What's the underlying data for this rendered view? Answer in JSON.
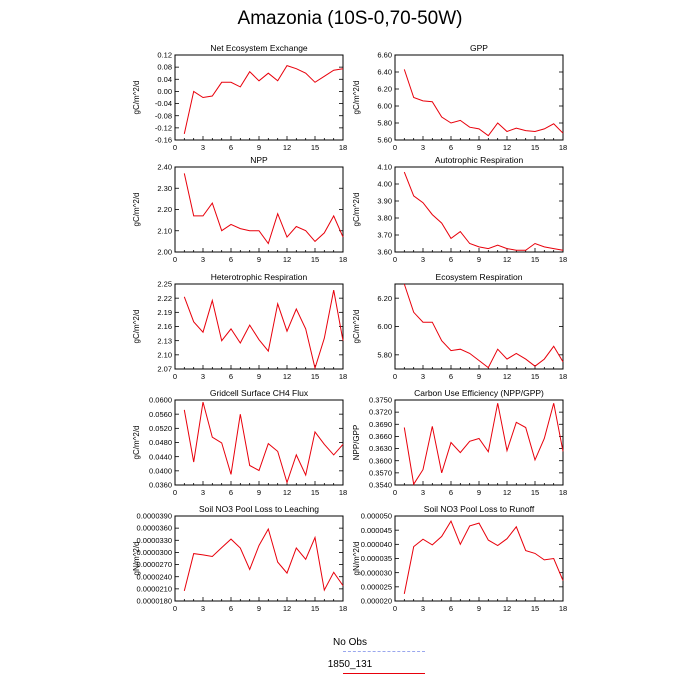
{
  "title": "Amazonia (10S-0,70-50W)",
  "colors": {
    "series": "#e8000b",
    "obs": "#9aa7ee"
  },
  "legend": {
    "obs_label": "No Obs",
    "model_label": "1850_131"
  },
  "chart_data": [
    {
      "type": "line",
      "title": "Net Ecosystem Exchange",
      "ylabel": "gC/m^2/d",
      "xlim": [
        0,
        18
      ],
      "xticks": [
        "0",
        "3",
        "6",
        "9",
        "12",
        "15",
        "18"
      ],
      "ylim": [
        -0.16,
        0.12
      ],
      "yticks": [
        "-0.16",
        "-0.12",
        "-0.08",
        "-0.04",
        "0.00",
        "0.04",
        "0.08",
        "0.12"
      ],
      "x": [
        1,
        2,
        3,
        4,
        5,
        6,
        7,
        8,
        9,
        10,
        11,
        12,
        13,
        14,
        15,
        16,
        17,
        18
      ],
      "y": [
        -0.14,
        0.0,
        -0.02,
        -0.015,
        0.03,
        0.03,
        0.015,
        0.065,
        0.035,
        0.06,
        0.035,
        0.085,
        0.075,
        0.06,
        0.03,
        0.05,
        0.07,
        0.075
      ]
    },
    {
      "type": "line",
      "title": "GPP",
      "ylabel": "gC/m^2/d",
      "xlim": [
        0,
        18
      ],
      "xticks": [
        "0",
        "3",
        "6",
        "9",
        "12",
        "15",
        "18"
      ],
      "ylim": [
        5.6,
        6.6
      ],
      "yticks": [
        "5.60",
        "5.80",
        "6.00",
        "6.20",
        "6.40",
        "6.60"
      ],
      "x": [
        1,
        2,
        3,
        4,
        5,
        6,
        7,
        8,
        9,
        10,
        11,
        12,
        13,
        14,
        15,
        16,
        17,
        18
      ],
      "y": [
        6.43,
        6.1,
        6.06,
        6.05,
        5.87,
        5.8,
        5.83,
        5.75,
        5.73,
        5.65,
        5.8,
        5.7,
        5.74,
        5.71,
        5.7,
        5.73,
        5.79,
        5.68
      ]
    },
    {
      "type": "line",
      "title": "NPP",
      "ylabel": "gC/m^2/d",
      "xlim": [
        0,
        18
      ],
      "xticks": [
        "0",
        "3",
        "6",
        "9",
        "12",
        "15",
        "18"
      ],
      "ylim": [
        2.0,
        2.4
      ],
      "yticks": [
        "2.00",
        "2.10",
        "2.20",
        "2.30",
        "2.40"
      ],
      "x": [
        1,
        2,
        3,
        4,
        5,
        6,
        7,
        8,
        9,
        10,
        11,
        12,
        13,
        14,
        15,
        16,
        17,
        18
      ],
      "y": [
        2.37,
        2.17,
        2.17,
        2.23,
        2.1,
        2.13,
        2.11,
        2.1,
        2.1,
        2.04,
        2.18,
        2.07,
        2.12,
        2.1,
        2.05,
        2.09,
        2.17,
        2.07
      ]
    },
    {
      "type": "line",
      "title": "Autotrophic Respiration",
      "ylabel": "gC/m^2/d",
      "xlim": [
        0,
        18
      ],
      "xticks": [
        "0",
        "3",
        "6",
        "9",
        "12",
        "15",
        "18"
      ],
      "ylim": [
        3.6,
        4.1
      ],
      "yticks": [
        "3.60",
        "3.70",
        "3.80",
        "3.90",
        "4.00",
        "4.10"
      ],
      "x": [
        1,
        2,
        3,
        4,
        5,
        6,
        7,
        8,
        9,
        10,
        11,
        12,
        13,
        14,
        15,
        16,
        17,
        18
      ],
      "y": [
        4.07,
        3.93,
        3.89,
        3.82,
        3.77,
        3.68,
        3.72,
        3.65,
        3.63,
        3.62,
        3.64,
        3.62,
        3.61,
        3.61,
        3.65,
        3.63,
        3.62,
        3.61
      ]
    },
    {
      "type": "line",
      "title": "Heterotrophic Respiration",
      "ylabel": "gC/m^2/d",
      "xlim": [
        0,
        18
      ],
      "xticks": [
        "0",
        "3",
        "6",
        "9",
        "12",
        "15",
        "18"
      ],
      "ylim": [
        2.07,
        2.25
      ],
      "yticks": [
        "2.07",
        "2.10",
        "2.13",
        "2.16",
        "2.19",
        "2.22",
        "2.25"
      ],
      "x": [
        1,
        2,
        3,
        4,
        5,
        6,
        7,
        8,
        9,
        10,
        11,
        12,
        13,
        14,
        15,
        16,
        17,
        18
      ],
      "y": [
        2.223,
        2.17,
        2.148,
        2.215,
        2.13,
        2.155,
        2.125,
        2.163,
        2.132,
        2.108,
        2.208,
        2.15,
        2.197,
        2.155,
        2.072,
        2.135,
        2.237,
        2.13
      ]
    },
    {
      "type": "line",
      "title": "Ecosystem Respiration",
      "ylabel": "gC/m^2/d",
      "xlim": [
        0,
        18
      ],
      "xticks": [
        "0",
        "3",
        "6",
        "9",
        "12",
        "15",
        "18"
      ],
      "ylim": [
        5.7,
        6.3
      ],
      "yticks": [
        "5.80",
        "6.00",
        "6.20"
      ],
      "x": [
        1,
        2,
        3,
        4,
        5,
        6,
        7,
        8,
        9,
        10,
        11,
        12,
        13,
        14,
        15,
        16,
        17,
        18
      ],
      "y": [
        6.3,
        6.1,
        6.03,
        6.03,
        5.9,
        5.83,
        5.84,
        5.81,
        5.76,
        5.71,
        5.84,
        5.77,
        5.81,
        5.77,
        5.72,
        5.77,
        5.86,
        5.75
      ]
    },
    {
      "type": "line",
      "title": "Gridcell Surface CH4 Flux",
      "ylabel": "gC/m^2/d",
      "xlim": [
        0,
        18
      ],
      "xticks": [
        "0",
        "3",
        "6",
        "9",
        "12",
        "15",
        "18"
      ],
      "ylim": [
        0.036,
        0.06
      ],
      "yticks": [
        "0.0360",
        "0.0400",
        "0.0440",
        "0.0480",
        "0.0520",
        "0.0560",
        "0.0600"
      ],
      "x": [
        1,
        2,
        3,
        4,
        5,
        6,
        7,
        8,
        9,
        10,
        11,
        12,
        13,
        14,
        15,
        16,
        17,
        18
      ],
      "y": [
        0.0572,
        0.0425,
        0.0594,
        0.0495,
        0.0479,
        0.039,
        0.056,
        0.0415,
        0.0401,
        0.0477,
        0.0455,
        0.0367,
        0.0445,
        0.0388,
        0.051,
        0.0475,
        0.0445,
        0.0475
      ]
    },
    {
      "type": "line",
      "title": "Carbon Use Efficiency (NPP/GPP)",
      "ylabel": "NPP/GPP",
      "xlim": [
        0,
        18
      ],
      "xticks": [
        "0",
        "3",
        "6",
        "9",
        "12",
        "15",
        "18"
      ],
      "ylim": [
        0.354,
        0.375
      ],
      "yticks": [
        "0.3540",
        "0.3570",
        "0.3600",
        "0.3630",
        "0.3660",
        "0.3690",
        "0.3720",
        "0.3750"
      ],
      "x": [
        1,
        2,
        3,
        4,
        5,
        6,
        7,
        8,
        9,
        10,
        11,
        12,
        13,
        14,
        15,
        16,
        17,
        18
      ],
      "y": [
        0.3682,
        0.3542,
        0.3578,
        0.3685,
        0.357,
        0.3645,
        0.362,
        0.3648,
        0.3655,
        0.3622,
        0.3742,
        0.3625,
        0.3695,
        0.3682,
        0.3602,
        0.3655,
        0.3742,
        0.3623
      ]
    },
    {
      "type": "line",
      "title": "Soil NO3 Pool Loss to Leaching",
      "ylabel": "gN/m^2/d",
      "xlim": [
        0,
        18
      ],
      "xticks": [
        "0",
        "3",
        "6",
        "9",
        "12",
        "15",
        "18"
      ],
      "ylim": [
        1.8e-05,
        3.9e-05
      ],
      "yticks": [
        "0.0000180",
        "0.0000210",
        "0.0000240",
        "0.0000270",
        "0.0000300",
        "0.0000330",
        "0.0000360",
        "0.0000390"
      ],
      "x": [
        1,
        2,
        3,
        4,
        5,
        6,
        7,
        8,
        9,
        10,
        11,
        12,
        13,
        14,
        15,
        16,
        17,
        18
      ],
      "y": [
        2.05e-05,
        2.97e-05,
        2.94e-05,
        2.9e-05,
        3.12e-05,
        3.33e-05,
        3.11e-05,
        2.58e-05,
        3.17e-05,
        3.58e-05,
        2.76e-05,
        2.49e-05,
        3.11e-05,
        2.83e-05,
        3.37e-05,
        2.07e-05,
        2.51e-05,
        2.18e-05
      ]
    },
    {
      "type": "line",
      "title": "Soil NO3 Pool Loss to Runoff",
      "ylabel": "gN/m^2/d",
      "xlim": [
        0,
        18
      ],
      "xticks": [
        "0",
        "3",
        "6",
        "9",
        "12",
        "15",
        "18"
      ],
      "ylim": [
        2e-05,
        5e-05
      ],
      "yticks": [
        "0.000020",
        "0.000025",
        "0.000030",
        "0.000035",
        "0.000040",
        "0.000045",
        "0.000050"
      ],
      "x": [
        1,
        2,
        3,
        4,
        5,
        6,
        7,
        8,
        9,
        10,
        11,
        12,
        13,
        14,
        15,
        16,
        17,
        18
      ],
      "y": [
        2.25e-05,
        3.92e-05,
        4.18e-05,
        3.98e-05,
        4.28e-05,
        4.82e-05,
        4e-05,
        4.65e-05,
        4.75e-05,
        4.15e-05,
        3.96e-05,
        4.2e-05,
        4.62e-05,
        3.78e-05,
        3.68e-05,
        3.45e-05,
        3.5e-05,
        2.72e-05
      ]
    }
  ]
}
